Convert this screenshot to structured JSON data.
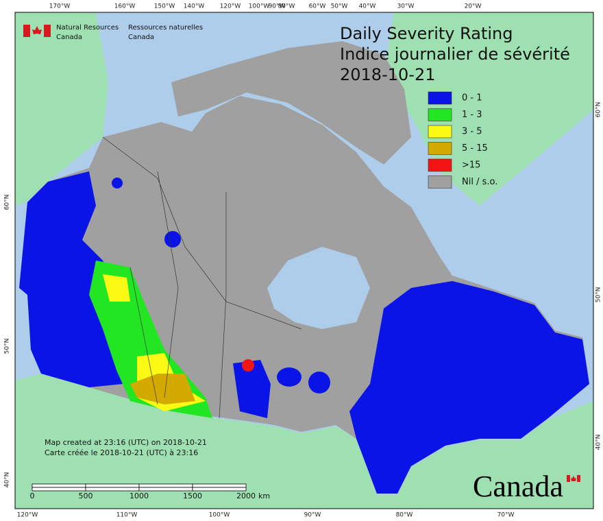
{
  "header": {
    "org_en": [
      "Natural Resources",
      "Canada"
    ],
    "org_fr": [
      "Ressources naturelles",
      "Canada"
    ]
  },
  "title": [
    "Daily Severity Rating",
    "Indice journalier de sévérité",
    "2018-10-21"
  ],
  "legend": [
    {
      "label": "0 - 1",
      "color": "#0a14e6"
    },
    {
      "label": "1 - 3",
      "color": "#22e622"
    },
    {
      "label": "3 - 5",
      "color": "#fafa14"
    },
    {
      "label": "5 - 15",
      "color": "#d2aa00"
    },
    {
      "label": ">15",
      "color": "#f51414"
    },
    {
      "label": "Nil / s.o.",
      "color": "#a0a0a0"
    }
  ],
  "graticule": {
    "top": [
      "170°W",
      "160°W",
      "150°W",
      "140°W",
      "120°W",
      "100°W",
      "90°W",
      "80°W",
      "60°W",
      "50°W",
      "40°W",
      "30°W",
      "20°W"
    ],
    "bottom": [
      "120°W",
      "110°W",
      "100°W",
      "90°W",
      "80°W",
      "70°W"
    ],
    "left": [
      "60°N",
      "50°N",
      "40°N"
    ],
    "right": [
      "60°N",
      "50°N",
      "40°N"
    ]
  },
  "notes": [
    "Map created at 23:16 (UTC) on 2018-10-21",
    "Carte créée le 2018-10-21 (UTC) à 23:16"
  ],
  "scale_bar": {
    "labels": [
      "0",
      "500",
      "1000",
      "1500",
      "2000"
    ],
    "unit": "km"
  },
  "wordmark": "Canada"
}
